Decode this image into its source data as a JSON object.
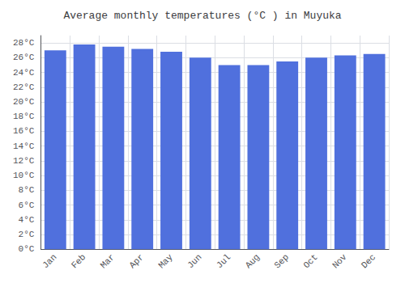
{
  "chart_data": {
    "type": "bar",
    "title": "Average monthly temperatures (°C ) in Muyuka",
    "categories": [
      "Jan",
      "Feb",
      "Mar",
      "Apr",
      "May",
      "Jun",
      "Jul",
      "Aug",
      "Sep",
      "Oct",
      "Nov",
      "Dec"
    ],
    "values": [
      27.0,
      27.8,
      27.5,
      27.2,
      26.8,
      26.0,
      25.0,
      25.0,
      25.5,
      26.0,
      26.3,
      26.5
    ],
    "ylim": [
      0,
      29
    ],
    "yticks": [
      {
        "value": 0,
        "label": "0°C"
      },
      {
        "value": 2,
        "label": "2°C"
      },
      {
        "value": 4,
        "label": "4°C"
      },
      {
        "value": 6,
        "label": "6°C"
      },
      {
        "value": 8,
        "label": "8°C"
      },
      {
        "value": 10,
        "label": "10°C"
      },
      {
        "value": 12,
        "label": "12°C"
      },
      {
        "value": 14,
        "label": "14°C"
      },
      {
        "value": 16,
        "label": "16°C"
      },
      {
        "value": 18,
        "label": "18°C"
      },
      {
        "value": 20,
        "label": "20°C"
      },
      {
        "value": 22,
        "label": "22°C"
      },
      {
        "value": 24,
        "label": "24°C"
      },
      {
        "value": 26,
        "label": "26°C"
      },
      {
        "value": 28,
        "label": "28°C"
      }
    ],
    "grid": true
  }
}
